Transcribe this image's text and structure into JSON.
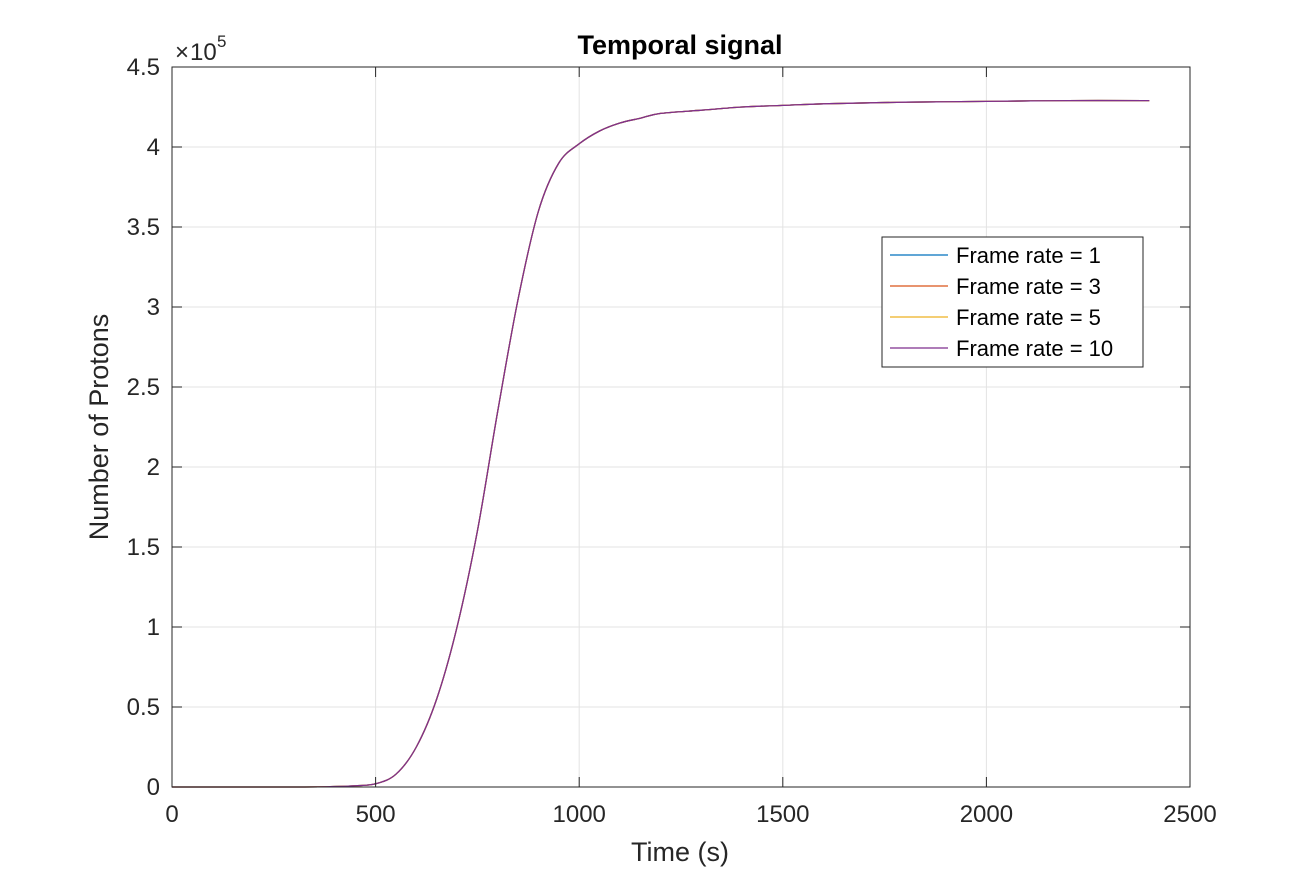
{
  "chart_data": {
    "type": "line",
    "title": "Temporal signal",
    "xlabel": "Time (s)",
    "ylabel": "Number of Protons",
    "xlim": [
      0,
      2500
    ],
    "ylim": [
      0,
      4.5
    ],
    "y_scale_multiplier": "10",
    "y_scale_exponent": "5",
    "xticks": [
      0,
      500,
      1000,
      1500,
      2000,
      2500
    ],
    "xtick_labels": [
      "0",
      "500",
      "1000",
      "1500",
      "2000",
      "2500"
    ],
    "yticks": [
      0,
      0.5,
      1,
      1.5,
      2,
      2.5,
      3,
      3.5,
      4,
      4.5
    ],
    "ytick_labels": [
      "0",
      "0.5",
      "1",
      "1.5",
      "2",
      "2.5",
      "3",
      "3.5",
      "4",
      "4.5"
    ],
    "grid": true,
    "legend_position": "right",
    "x": [
      0,
      300,
      400,
      450,
      500,
      550,
      600,
      650,
      700,
      750,
      800,
      850,
      900,
      950,
      1000,
      1050,
      1100,
      1150,
      1200,
      1300,
      1400,
      1500,
      1600,
      1800,
      2000,
      2200,
      2400
    ],
    "series": [
      {
        "name": "Frame rate = 1",
        "color": "#0072BD",
        "values": [
          0,
          0,
          0.003,
          0.008,
          0.02,
          0.08,
          0.25,
          0.55,
          1.0,
          1.6,
          2.35,
          3.05,
          3.6,
          3.9,
          4.02,
          4.1,
          4.15,
          4.18,
          4.21,
          4.23,
          4.25,
          4.26,
          4.27,
          4.28,
          4.285,
          4.29,
          4.29
        ]
      },
      {
        "name": "Frame rate = 3",
        "color": "#D95319",
        "values": [
          0,
          0,
          0.003,
          0.008,
          0.02,
          0.08,
          0.25,
          0.55,
          1.0,
          1.6,
          2.35,
          3.05,
          3.6,
          3.9,
          4.02,
          4.1,
          4.15,
          4.18,
          4.21,
          4.23,
          4.25,
          4.26,
          4.27,
          4.28,
          4.285,
          4.29,
          4.29
        ]
      },
      {
        "name": "Frame rate = 5",
        "color": "#EDB120",
        "values": [
          0,
          0,
          0.003,
          0.008,
          0.02,
          0.08,
          0.25,
          0.55,
          1.0,
          1.6,
          2.35,
          3.05,
          3.6,
          3.9,
          4.02,
          4.1,
          4.15,
          4.18,
          4.21,
          4.23,
          4.25,
          4.26,
          4.27,
          4.28,
          4.285,
          4.29,
          4.29
        ]
      },
      {
        "name": "Frame rate = 10",
        "color": "#7E2F8E",
        "values": [
          0,
          0,
          0.003,
          0.008,
          0.02,
          0.08,
          0.25,
          0.55,
          1.0,
          1.6,
          2.35,
          3.05,
          3.6,
          3.9,
          4.02,
          4.1,
          4.15,
          4.18,
          4.21,
          4.23,
          4.25,
          4.26,
          4.27,
          4.28,
          4.285,
          4.29,
          4.29
        ]
      }
    ]
  }
}
